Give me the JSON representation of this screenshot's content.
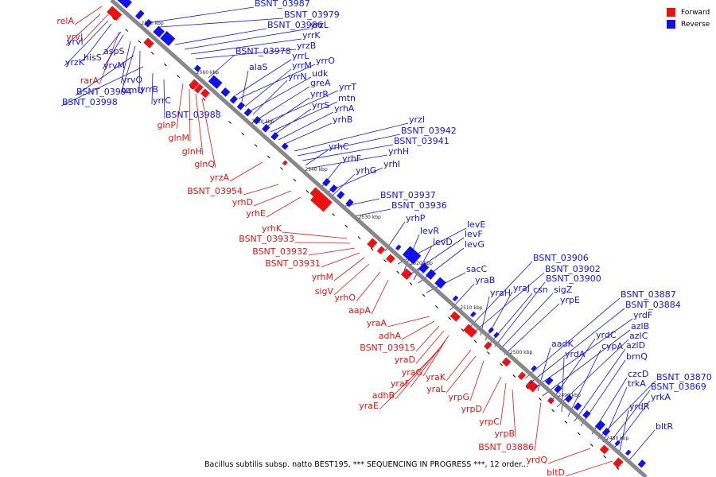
{
  "legend": {
    "forward_label": "Forward",
    "reverse_label": "Reverse",
    "forward_color": "#ee1111",
    "reverse_color": "#1111ee"
  },
  "caption": "Bacillus subtilis subsp. natto BEST195, *** SEQUENCING IN PROGRESS ***, 12 order...",
  "ruler_labels": [
    "2570 kbp",
    "2560 kbp",
    "2550 kbp",
    "2540 kbp",
    "2530 kbp",
    "2520 kbp",
    "2510 kbp",
    "2500 kbp",
    "2490 kbp",
    "2480 kbp"
  ],
  "forward_genes": [
    "relA",
    "yrvJ",
    "rarA",
    "glnP",
    "glnM",
    "glnH",
    "glnQ",
    "yrzA",
    "BSNT_03954",
    "yrhD",
    "yrhE",
    "yrhK",
    "BSNT_03933",
    "BSNT_03932",
    "BSNT_03931",
    "yrhM",
    "sigV",
    "yrhO",
    "aapA",
    "yraA",
    "adhA",
    "BSNT_03915",
    "yraD",
    "yraG",
    "yraF",
    "adhB",
    "yraE",
    "yraK",
    "yraL",
    "yrpG",
    "yrpD",
    "yrpC",
    "yrpB",
    "BSNT_03886",
    "yrdQ",
    "bltD"
  ],
  "reverse_genes": [
    "yrvI",
    "yrzK",
    "hisS",
    "aspS",
    "yrvM",
    "yrvO",
    "trmU",
    "yrrB",
    "BSNT_03994",
    "BSNT_03998",
    "yrrC",
    "BSNT_03988",
    "BSNT_03987",
    "BSNT_03979",
    "BSNT_03986",
    "yrzL",
    "yrrK",
    "yrzB",
    "BSNT_03978",
    "yrrL",
    "yrrO",
    "alaS",
    "yrrM",
    "udk",
    "yrrN",
    "greA",
    "yrrT",
    "yrrR",
    "mtn",
    "yrrS",
    "yrhA",
    "yrhB",
    "yrzI",
    "BSNT_03942",
    "BSNT_03941",
    "yrhC",
    "yrhH",
    "yrhF",
    "yrhI",
    "yrhG",
    "BSNT_03937",
    "BSNT_03936",
    "yrhP",
    "levE",
    "levR",
    "levF",
    "levD",
    "levG",
    "sacC",
    "yraB",
    "BSNT_03906",
    "BSNT_03902",
    "yraH",
    "yraJ",
    "csn",
    "BSNT_03900",
    "sigZ",
    "yrpE",
    "BSNT_03887",
    "BSNT_03884",
    "yrdF",
    "aadK",
    "azlB",
    "yrdC",
    "azlC",
    "yrdA",
    "cypA",
    "azlD",
    "brnQ",
    "czcD",
    "BSNT_03870",
    "trkA",
    "BSNT_03869",
    "yrkA",
    "yrdR",
    "bltR"
  ]
}
